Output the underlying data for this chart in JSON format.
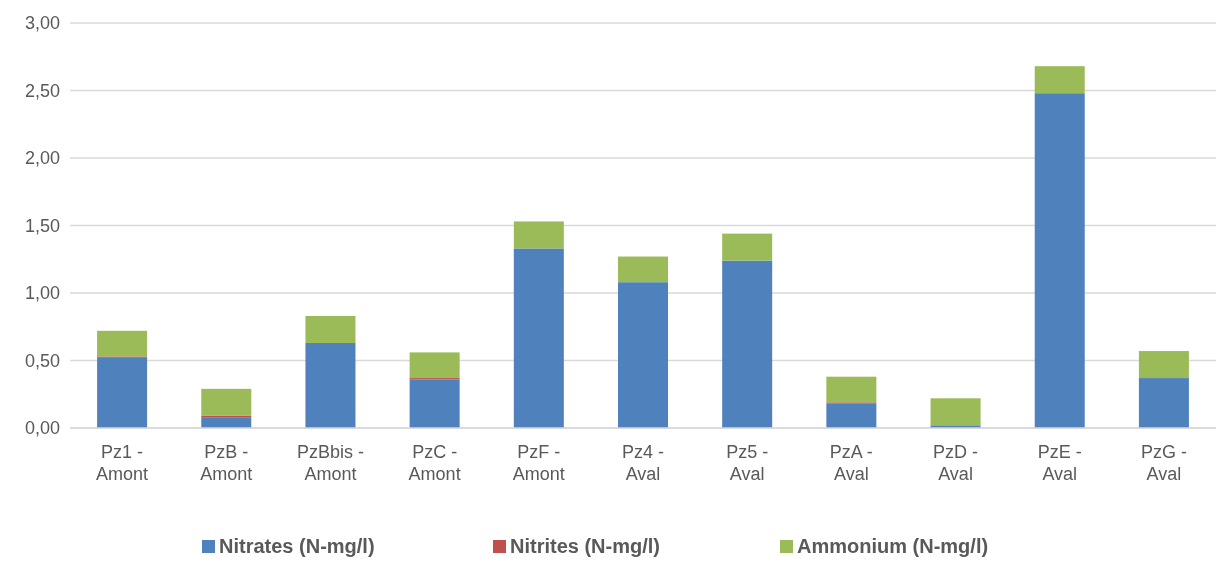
{
  "chart_data": {
    "type": "bar",
    "stacked": true,
    "categories": [
      "Pz1 - Amont",
      "PzB - Amont",
      "PzBbis - Amont",
      "PzC - Amont",
      "PzF - Amont",
      "Pz4 - Aval",
      "Pz5 - Aval",
      "PzA - Aval",
      "PzD - Aval",
      "PzE - Aval",
      "PzG - Aval"
    ],
    "series": [
      {
        "name": "Nitrates (N-mg/l)",
        "color": "#4f81bd",
        "values": [
          0.52,
          0.08,
          0.63,
          0.36,
          1.33,
          1.08,
          1.24,
          0.18,
          0.02,
          2.48,
          0.37
        ]
      },
      {
        "name": "Nitrites (N-mg/l)",
        "color": "#c0504d",
        "values": [
          0.01,
          0.01,
          0,
          0.01,
          0,
          0,
          0,
          0.01,
          0,
          0,
          0
        ]
      },
      {
        "name": "Ammonium (N-mg/l)",
        "color": "#9bbb59",
        "values": [
          0.19,
          0.2,
          0.2,
          0.19,
          0.2,
          0.19,
          0.2,
          0.19,
          0.2,
          0.2,
          0.2
        ]
      }
    ],
    "ylim": [
      0,
      3
    ],
    "yticks": [
      {
        "value": 0,
        "label": "0,00"
      },
      {
        "value": 0.5,
        "label": "0,50"
      },
      {
        "value": 1,
        "label": "1,00"
      },
      {
        "value": 1.5,
        "label": "1,50"
      },
      {
        "value": 2,
        "label": "2,00"
      },
      {
        "value": 2.5,
        "label": "2,50"
      },
      {
        "value": 3,
        "label": "3,00"
      }
    ],
    "grid": "y",
    "legend": "bottom"
  }
}
